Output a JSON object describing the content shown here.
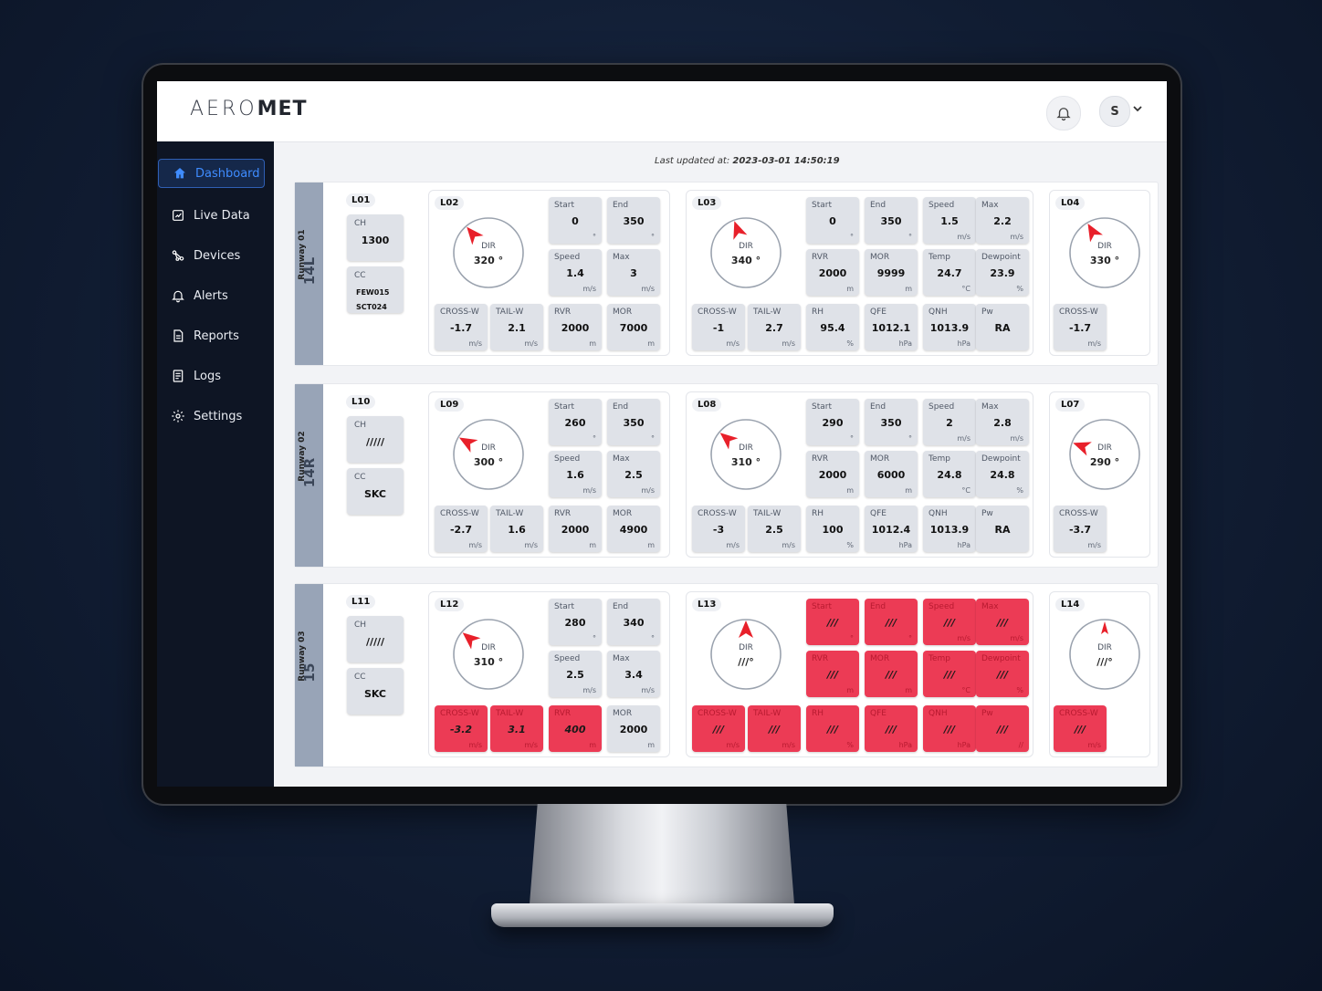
{
  "app": {
    "logo_light": "AERO",
    "logo_bold": "MET",
    "user_initial": "S"
  },
  "sidebar": {
    "items": [
      {
        "label": "Dashboard",
        "icon": "home-icon"
      },
      {
        "label": "Live Data",
        "icon": "chart-icon"
      },
      {
        "label": "Devices",
        "icon": "devices-icon"
      },
      {
        "label": "Alerts",
        "icon": "bell-icon"
      },
      {
        "label": "Reports",
        "icon": "document-icon"
      },
      {
        "label": "Logs",
        "icon": "logs-icon"
      },
      {
        "label": "Settings",
        "icon": "gear-icon"
      }
    ]
  },
  "updated": {
    "label": "Last updated at:",
    "value": "2023-03-01 14:50:19"
  },
  "runways": [
    {
      "name": "Runway 01",
      "code": "14L",
      "sky": {
        "id": "L01",
        "ch": {
          "label": "CH",
          "value": "1300"
        },
        "cc": {
          "label": "CC",
          "lines": [
            "FEW015",
            "SCT024"
          ]
        }
      },
      "p1": {
        "id": "L02",
        "dial": {
          "label": "DIR",
          "value": "320 °",
          "angle": 320
        },
        "tiles": [
          {
            "l": "Start",
            "v": "0",
            "u": "°"
          },
          {
            "l": "End",
            "v": "350",
            "u": "°"
          },
          {
            "l": "Speed",
            "v": "1.4",
            "u": "m/s"
          },
          {
            "l": "Max",
            "v": "3",
            "u": "m/s"
          },
          {
            "l": "CROSS-W",
            "v": "-1.7",
            "u": "m/s"
          },
          {
            "l": "TAIL-W",
            "v": "2.1",
            "u": "m/s"
          },
          {
            "l": "RVR",
            "v": "2000",
            "u": "m"
          },
          {
            "l": "MOR",
            "v": "7000",
            "u": "m"
          }
        ]
      },
      "p2": {
        "id": "L03",
        "dial": {
          "label": "DIR",
          "value": "340 °",
          "angle": 340
        },
        "tiles": [
          {
            "l": "Start",
            "v": "0",
            "u": "°"
          },
          {
            "l": "End",
            "v": "350",
            "u": "°"
          },
          {
            "l": "Speed",
            "v": "1.5",
            "u": "m/s"
          },
          {
            "l": "Max",
            "v": "2.2",
            "u": "m/s"
          },
          {
            "l": "RVR",
            "v": "2000",
            "u": "m"
          },
          {
            "l": "MOR",
            "v": "9999",
            "u": "m"
          },
          {
            "l": "Temp",
            "v": "24.7",
            "u": "°C"
          },
          {
            "l": "Dewpoint",
            "v": "23.9",
            "u": "%"
          },
          {
            "l": "CROSS-W",
            "v": "-1",
            "u": "m/s"
          },
          {
            "l": "TAIL-W",
            "v": "2.7",
            "u": "m/s"
          },
          {
            "l": "RH",
            "v": "95.4",
            "u": "%"
          },
          {
            "l": "QFE",
            "v": "1012.1",
            "u": "hPa"
          },
          {
            "l": "QNH",
            "v": "1013.9",
            "u": "hPa"
          },
          {
            "l": "Pw",
            "v": "RA",
            "u": ""
          }
        ]
      },
      "p3": {
        "id": "L04",
        "dial": {
          "label": "DIR",
          "value": "330 °",
          "angle": 330
        },
        "tile": {
          "l": "CROSS-W",
          "v": "-1.7",
          "u": "m/s"
        }
      }
    },
    {
      "name": "Runway 02",
      "code": "14R",
      "sky": {
        "id": "L10",
        "ch": {
          "label": "CH",
          "value": "/////"
        },
        "cc": {
          "label": "CC",
          "lines": [
            "SKC"
          ]
        }
      },
      "p1": {
        "id": "L09",
        "dial": {
          "label": "DIR",
          "value": "300 °",
          "angle": 300
        },
        "tiles": [
          {
            "l": "Start",
            "v": "260",
            "u": "°"
          },
          {
            "l": "End",
            "v": "350",
            "u": "°"
          },
          {
            "l": "Speed",
            "v": "1.6",
            "u": "m/s"
          },
          {
            "l": "Max",
            "v": "2.5",
            "u": "m/s"
          },
          {
            "l": "CROSS-W",
            "v": "-2.7",
            "u": "m/s"
          },
          {
            "l": "TAIL-W",
            "v": "1.6",
            "u": "m/s"
          },
          {
            "l": "RVR",
            "v": "2000",
            "u": "m"
          },
          {
            "l": "MOR",
            "v": "4900",
            "u": "m"
          }
        ]
      },
      "p2": {
        "id": "L08",
        "dial": {
          "label": "DIR",
          "value": "310 °",
          "angle": 310
        },
        "tiles": [
          {
            "l": "Start",
            "v": "290",
            "u": "°"
          },
          {
            "l": "End",
            "v": "350",
            "u": "°"
          },
          {
            "l": "Speed",
            "v": "2",
            "u": "m/s"
          },
          {
            "l": "Max",
            "v": "2.8",
            "u": "m/s"
          },
          {
            "l": "RVR",
            "v": "2000",
            "u": "m"
          },
          {
            "l": "MOR",
            "v": "6000",
            "u": "m"
          },
          {
            "l": "Temp",
            "v": "24.8",
            "u": "°C"
          },
          {
            "l": "Dewpoint",
            "v": "24.8",
            "u": "%"
          },
          {
            "l": "CROSS-W",
            "v": "-3",
            "u": "m/s"
          },
          {
            "l": "TAIL-W",
            "v": "2.5",
            "u": "m/s"
          },
          {
            "l": "RH",
            "v": "100",
            "u": "%"
          },
          {
            "l": "QFE",
            "v": "1012.4",
            "u": "hPa"
          },
          {
            "l": "QNH",
            "v": "1013.9",
            "u": "hPa"
          },
          {
            "l": "Pw",
            "v": "RA",
            "u": ""
          }
        ]
      },
      "p3": {
        "id": "L07",
        "dial": {
          "label": "DIR",
          "value": "290 °",
          "angle": 290
        },
        "tile": {
          "l": "CROSS-W",
          "v": "-3.7",
          "u": "m/s"
        }
      }
    },
    {
      "name": "Runway 03",
      "code": "15",
      "sky": {
        "id": "L11",
        "ch": {
          "label": "CH",
          "value": "/////"
        },
        "cc": {
          "label": "CC",
          "lines": [
            "SKC"
          ]
        }
      },
      "p1": {
        "id": "L12",
        "dial": {
          "label": "DIR",
          "value": "310 °",
          "angle": 310
        },
        "tiles": [
          {
            "l": "Start",
            "v": "280",
            "u": "°"
          },
          {
            "l": "End",
            "v": "340",
            "u": "°"
          },
          {
            "l": "Speed",
            "v": "2.5",
            "u": "m/s"
          },
          {
            "l": "Max",
            "v": "3.4",
            "u": "m/s"
          },
          {
            "l": "CROSS-W",
            "v": "-3.2",
            "u": "m/s",
            "alert": true
          },
          {
            "l": "TAIL-W",
            "v": "3.1",
            "u": "m/s",
            "alert": true
          },
          {
            "l": "RVR",
            "v": "400",
            "u": "m",
            "alert": true
          },
          {
            "l": "MOR",
            "v": "2000",
            "u": "m"
          }
        ]
      },
      "p2": {
        "id": "L13",
        "dial": {
          "label": "DIR",
          "value": "///°",
          "angle": 0
        },
        "tiles": [
          {
            "l": "Start",
            "v": "///",
            "u": "°",
            "alert": true
          },
          {
            "l": "End",
            "v": "///",
            "u": "°",
            "alert": true
          },
          {
            "l": "Speed",
            "v": "///",
            "u": "m/s",
            "alert": true
          },
          {
            "l": "Max",
            "v": "///",
            "u": "m/s",
            "alert": true
          },
          {
            "l": "RVR",
            "v": "///",
            "u": "m",
            "alert": true
          },
          {
            "l": "MOR",
            "v": "///",
            "u": "m",
            "alert": true
          },
          {
            "l": "Temp",
            "v": "///",
            "u": "°C",
            "alert": true
          },
          {
            "l": "Dewpoint",
            "v": "///",
            "u": "%",
            "alert": true
          },
          {
            "l": "CROSS-W",
            "v": "///",
            "u": "m/s",
            "alert": true
          },
          {
            "l": "TAIL-W",
            "v": "///",
            "u": "m/s",
            "alert": true
          },
          {
            "l": "RH",
            "v": "///",
            "u": "%",
            "alert": true
          },
          {
            "l": "QFE",
            "v": "///",
            "u": "hPa",
            "alert": true
          },
          {
            "l": "QNH",
            "v": "///",
            "u": "hPa",
            "alert": true
          },
          {
            "l": "Pw",
            "v": "///",
            "u": "//",
            "alert": true
          }
        ]
      },
      "p3": {
        "id": "L14",
        "dial": {
          "label": "DIR",
          "value": "///°",
          "angle": 0,
          "small": true
        },
        "tile": {
          "l": "CROSS-W",
          "v": "///",
          "u": "m/s",
          "alert": true
        }
      }
    }
  ],
  "colors": {
    "sidebar_bg": "#0e1524",
    "accent": "#3f8cff",
    "alert": "#ec3b55",
    "arrow": "#e8202a",
    "runway_band": "#98a4b7"
  }
}
